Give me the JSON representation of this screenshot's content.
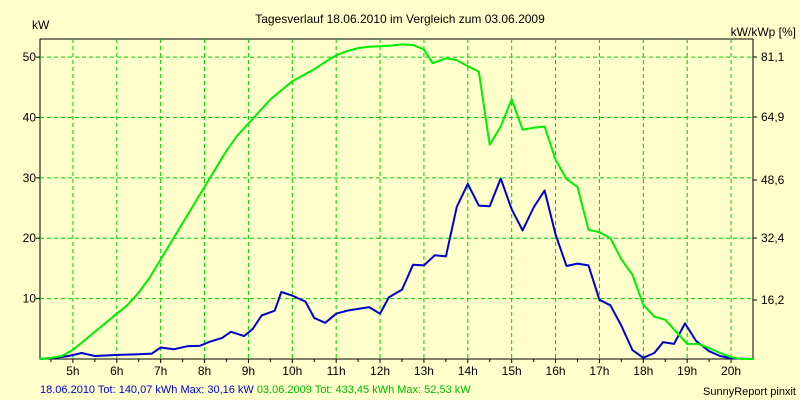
{
  "chart_data": {
    "type": "line",
    "title": "Tagesverlauf 18.06.2010 im Vergleich zum 03.06.2009",
    "ylabel_left": "kW",
    "ylabel_right": "kW/kWp [%]",
    "x_ticks": [
      "5h",
      "6h",
      "7h",
      "8h",
      "9h",
      "10h",
      "11h",
      "12h",
      "13h",
      "14h",
      "15h",
      "16h",
      "17h",
      "18h",
      "19h",
      "20h"
    ],
    "x_range": [
      4.25,
      20.5
    ],
    "y_ticks_left": [
      10,
      20,
      30,
      40,
      50
    ],
    "y_range_left": [
      0,
      53
    ],
    "y_ticks_right": [
      "16,2",
      "32,4",
      "48,6",
      "64,9",
      "81,1"
    ],
    "grid": true,
    "series": [
      {
        "name": "18.06.2010",
        "color": "#0000cc",
        "points": [
          [
            4.25,
            0
          ],
          [
            4.6,
            0.2
          ],
          [
            4.9,
            0.5
          ],
          [
            5.2,
            1.0
          ],
          [
            5.5,
            0.5
          ],
          [
            5.8,
            0.6
          ],
          [
            6.1,
            0.7
          ],
          [
            6.5,
            0.8
          ],
          [
            6.8,
            0.9
          ],
          [
            7.0,
            1.9
          ],
          [
            7.3,
            1.6
          ],
          [
            7.6,
            2.1
          ],
          [
            7.9,
            2.2
          ],
          [
            8.1,
            2.8
          ],
          [
            8.4,
            3.5
          ],
          [
            8.6,
            4.5
          ],
          [
            8.9,
            3.8
          ],
          [
            9.1,
            5.0
          ],
          [
            9.3,
            7.2
          ],
          [
            9.6,
            8.0
          ],
          [
            9.75,
            11.1
          ],
          [
            10.0,
            10.5
          ],
          [
            10.3,
            9.5
          ],
          [
            10.5,
            6.8
          ],
          [
            10.75,
            6.0
          ],
          [
            11.0,
            7.5
          ],
          [
            11.25,
            8.0
          ],
          [
            11.5,
            8.3
          ],
          [
            11.75,
            8.6
          ],
          [
            12.0,
            7.5
          ],
          [
            12.2,
            10.2
          ],
          [
            12.5,
            11.5
          ],
          [
            12.75,
            15.6
          ],
          [
            13.0,
            15.5
          ],
          [
            13.25,
            17.2
          ],
          [
            13.5,
            17.0
          ],
          [
            13.75,
            25.2
          ],
          [
            14.0,
            29.0
          ],
          [
            14.25,
            25.4
          ],
          [
            14.5,
            25.3
          ],
          [
            14.75,
            29.9
          ],
          [
            15.0,
            24.8
          ],
          [
            15.25,
            21.3
          ],
          [
            15.5,
            25.1
          ],
          [
            15.75,
            27.9
          ],
          [
            16.0,
            20.6
          ],
          [
            16.25,
            15.4
          ],
          [
            16.5,
            15.8
          ],
          [
            16.75,
            15.5
          ],
          [
            17.0,
            9.8
          ],
          [
            17.25,
            8.9
          ],
          [
            17.5,
            5.5
          ],
          [
            17.75,
            1.5
          ],
          [
            18.0,
            0.2
          ],
          [
            18.25,
            1.0
          ],
          [
            18.45,
            2.8
          ],
          [
            18.7,
            2.5
          ],
          [
            18.95,
            5.9
          ],
          [
            19.2,
            3.0
          ],
          [
            19.5,
            1.3
          ],
          [
            19.75,
            0.5
          ],
          [
            20.0,
            0.1
          ],
          [
            20.5,
            0
          ]
        ]
      },
      {
        "name": "03.06.2009",
        "color": "#00ee00",
        "points": [
          [
            4.25,
            0
          ],
          [
            4.5,
            0.2
          ],
          [
            4.75,
            0.5
          ],
          [
            5.0,
            1.5
          ],
          [
            5.25,
            3.0
          ],
          [
            5.5,
            4.5
          ],
          [
            5.75,
            6.0
          ],
          [
            6.0,
            7.5
          ],
          [
            6.25,
            9.0
          ],
          [
            6.5,
            11.0
          ],
          [
            6.75,
            13.5
          ],
          [
            7.0,
            16.5
          ],
          [
            7.25,
            19.5
          ],
          [
            7.5,
            22.5
          ],
          [
            7.75,
            25.5
          ],
          [
            8.0,
            28.5
          ],
          [
            8.25,
            31.5
          ],
          [
            8.5,
            34.5
          ],
          [
            8.75,
            37.0
          ],
          [
            9.0,
            39.0
          ],
          [
            9.25,
            41.0
          ],
          [
            9.5,
            43.0
          ],
          [
            9.75,
            44.5
          ],
          [
            10.0,
            46.0
          ],
          [
            10.25,
            47.0
          ],
          [
            10.5,
            48.0
          ],
          [
            10.75,
            49.2
          ],
          [
            11.0,
            50.3
          ],
          [
            11.25,
            51.0
          ],
          [
            11.5,
            51.5
          ],
          [
            11.75,
            51.7
          ],
          [
            12.0,
            51.8
          ],
          [
            12.25,
            51.9
          ],
          [
            12.5,
            52.1
          ],
          [
            12.75,
            52.0
          ],
          [
            13.0,
            51.3
          ],
          [
            13.2,
            49.0
          ],
          [
            13.5,
            49.8
          ],
          [
            13.75,
            49.5
          ],
          [
            14.0,
            48.5
          ],
          [
            14.25,
            47.6
          ],
          [
            14.5,
            35.5
          ],
          [
            14.75,
            38.5
          ],
          [
            15.0,
            43.0
          ],
          [
            15.25,
            38.0
          ],
          [
            15.5,
            38.3
          ],
          [
            15.75,
            38.5
          ],
          [
            16.0,
            33.0
          ],
          [
            16.25,
            29.8
          ],
          [
            16.5,
            28.5
          ],
          [
            16.75,
            21.4
          ],
          [
            17.0,
            21.0
          ],
          [
            17.25,
            20.0
          ],
          [
            17.5,
            16.5
          ],
          [
            17.75,
            14.0
          ],
          [
            18.0,
            9.0
          ],
          [
            18.25,
            7.0
          ],
          [
            18.5,
            6.5
          ],
          [
            18.75,
            4.5
          ],
          [
            19.0,
            2.5
          ],
          [
            19.25,
            2.5
          ],
          [
            19.5,
            1.8
          ],
          [
            19.75,
            1.0
          ],
          [
            20.0,
            0.3
          ],
          [
            20.25,
            0
          ],
          [
            20.5,
            0
          ]
        ]
      }
    ]
  },
  "footer": {
    "series1_label": "18.06.2010 Tot: 140,07 kWh Max: 30,16 kW",
    "series2_label": "03.06.2009 Tot: 433,45 kWh Max: 52,53 kW",
    "brand": "SunnyReport pinxit"
  }
}
